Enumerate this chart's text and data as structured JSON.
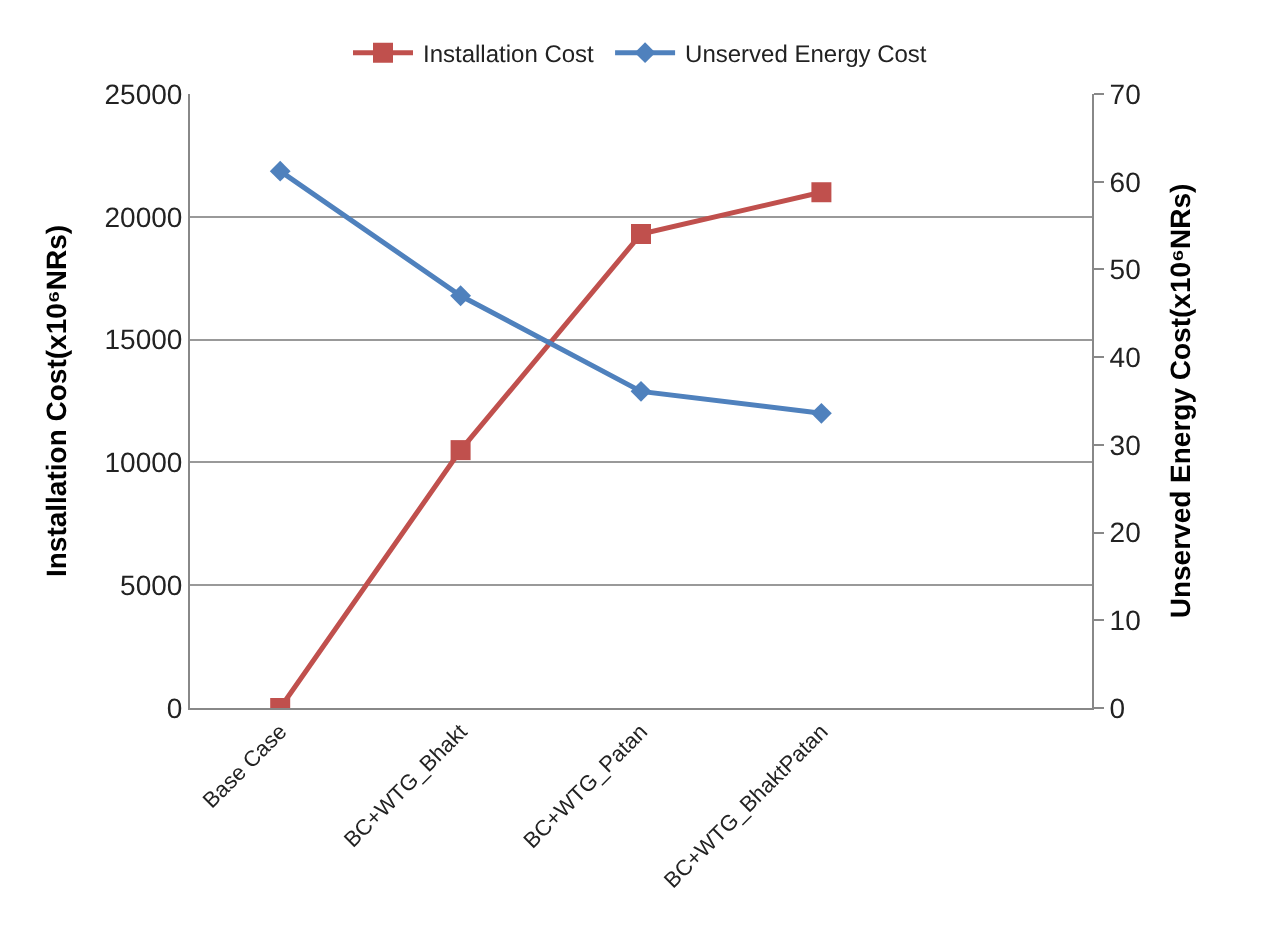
{
  "chart_data": {
    "type": "line",
    "categories": [
      "Base Case",
      "BC+WTG_Bhakt",
      "BC+WTG_Patan",
      "BC+WTG_BhaktPatan",
      null
    ],
    "series": [
      {
        "name": "Installation Cost",
        "color": "#c0504d",
        "marker": "square",
        "values": [
          0,
          10500,
          19300,
          21000,
          null
        ]
      },
      {
        "name": "Unserved Energy Cost",
        "color": "#4f81bd",
        "marker": "diamond",
        "axis": "y2",
        "values": [
          61.2,
          47.0,
          36.1,
          33.6,
          null
        ]
      }
    ],
    "ylabel": "Installation Cost(x10⁶NRs)",
    "y2label": "Unserved Energy Cost(x10⁶NRs)",
    "ylim": [
      0,
      25000
    ],
    "yticks": [
      0,
      5000,
      10000,
      15000,
      20000,
      25000
    ],
    "y2lim": [
      0,
      70
    ],
    "y2ticks": [
      0,
      10,
      20,
      30,
      40,
      50,
      60,
      70
    ],
    "grid": "y",
    "legend": "top",
    "line_style": "solid"
  }
}
